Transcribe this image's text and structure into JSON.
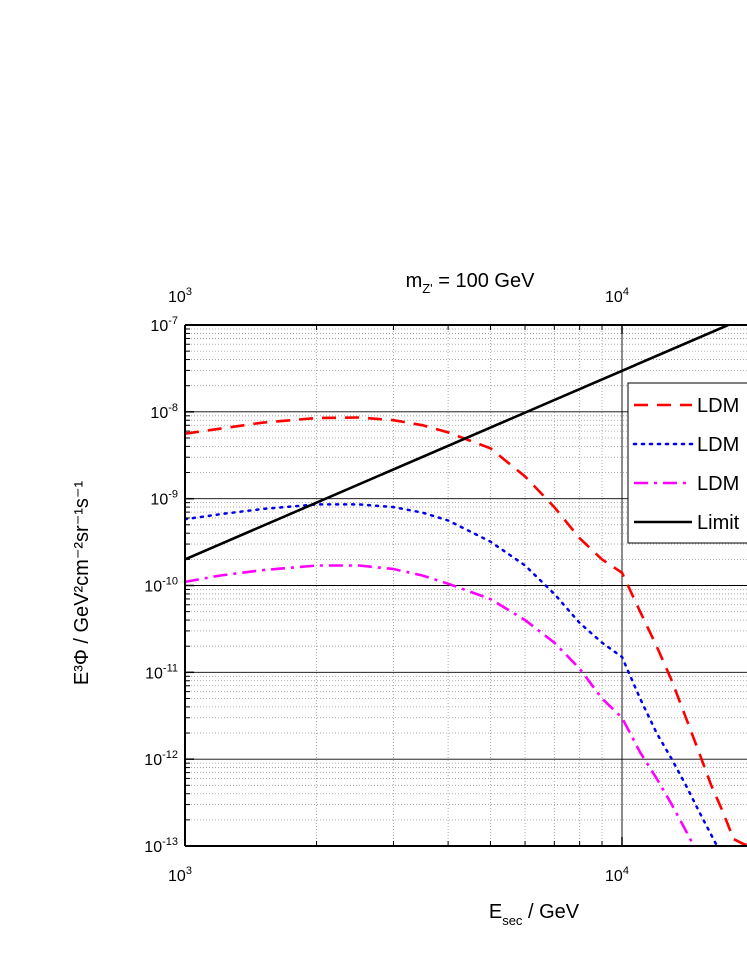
{
  "chart_data": {
    "type": "line",
    "title": "m",
    "title_sub": "Z'",
    "title_rest": " = 100 GeV",
    "xlabel": "E",
    "xlabel_sub": "sec",
    "xlabel_rest": " / GeV",
    "ylabel": "E³Φ / GeV²cm⁻²sr⁻¹s⁻¹",
    "xscale": "log",
    "yscale": "log",
    "xlim": [
      1000,
      20000
    ],
    "ylim": [
      1e-13,
      1e-07
    ],
    "grid": true,
    "legend_position": "right",
    "x_ticks": [
      {
        "value": 1000,
        "base": "10",
        "exp": "3"
      },
      {
        "value": 10000,
        "base": "10",
        "exp": "4"
      }
    ],
    "y_ticks": [
      {
        "value": 1e-07,
        "base": "10",
        "exp": "-7"
      },
      {
        "value": 1e-08,
        "base": "10",
        "exp": "-8"
      },
      {
        "value": 1e-09,
        "base": "10",
        "exp": "-9"
      },
      {
        "value": 1e-10,
        "base": "10",
        "exp": "-10"
      },
      {
        "value": 1e-11,
        "base": "10",
        "exp": "-11"
      },
      {
        "value": 1e-12,
        "base": "10",
        "exp": "-12"
      },
      {
        "value": 1e-13,
        "base": "10",
        "exp": "-13"
      }
    ],
    "series": [
      {
        "name": "LDM",
        "color": "#ff0000",
        "style": "dashed",
        "x": [
          1000,
          1500,
          2000,
          2500,
          3000,
          3500,
          4000,
          5000,
          6000,
          7000,
          8000,
          9000,
          10000,
          11000,
          12000,
          13000,
          14000,
          15000,
          16000,
          17000,
          18000,
          19000,
          20000
        ],
        "y": [
          5.6e-09,
          7.5e-09,
          8.5e-09,
          8.6e-09,
          8e-09,
          7e-09,
          5.8e-09,
          3.8e-09,
          1.8e-09,
          8e-10,
          3.5e-10,
          2e-10,
          1.4e-10,
          5e-11,
          2e-11,
          8e-12,
          3e-12,
          1.2e-12,
          5e-13,
          2.5e-13,
          1.2e-13,
          1.05e-13,
          1e-13
        ]
      },
      {
        "name": "LDM",
        "color": "#0000ee",
        "style": "dotted",
        "x": [
          1000,
          1200,
          1500,
          2000,
          2500,
          3000,
          3500,
          4000,
          5000,
          6000,
          7000,
          8000,
          9000,
          10000,
          11000,
          12000,
          13000,
          14000,
          15000,
          16500
        ],
        "y": [
          5.8e-10,
          6.6e-10,
          7.6e-10,
          8.6e-10,
          8.6e-10,
          8e-10,
          6.9e-10,
          5.6e-10,
          3.2e-10,
          1.7e-10,
          8e-11,
          3.7e-11,
          2.2e-11,
          1.5e-11,
          5e-12,
          2e-12,
          1e-12,
          5e-13,
          2.5e-13,
          1e-13
        ]
      },
      {
        "name": "LDM",
        "color": "#ff00ff",
        "style": "dashdot",
        "x": [
          1000,
          1200,
          1500,
          2000,
          2500,
          3000,
          3500,
          4000,
          5000,
          6000,
          7000,
          8000,
          9000,
          10000,
          11000,
          12000,
          13000,
          14000,
          14600
        ],
        "y": [
          1.1e-10,
          1.3e-10,
          1.5e-10,
          1.7e-10,
          1.7e-10,
          1.55e-10,
          1.3e-10,
          1.05e-10,
          7e-11,
          4e-11,
          2.2e-11,
          1.1e-11,
          5e-12,
          3e-12,
          1.2e-12,
          6e-13,
          3e-13,
          1.5e-13,
          1e-13
        ]
      },
      {
        "name": "Limit",
        "color": "#000000",
        "style": "solid",
        "x": [
          1000,
          17500
        ],
        "y": [
          2e-10,
          1e-07
        ]
      }
    ]
  }
}
